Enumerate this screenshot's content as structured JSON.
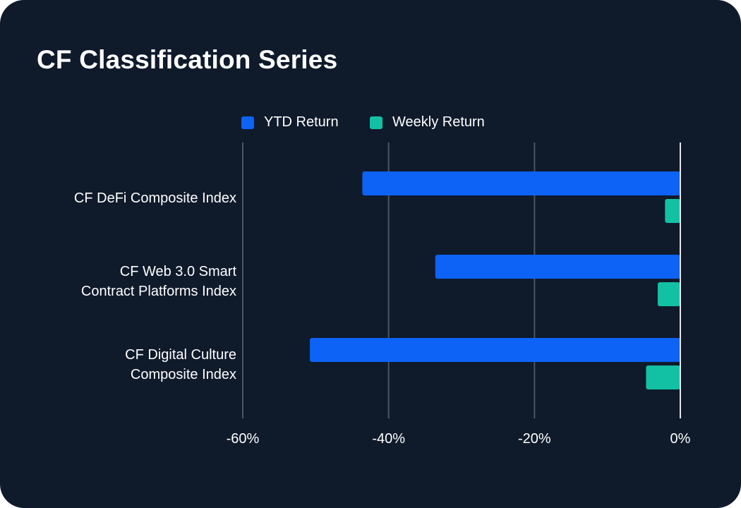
{
  "title": "CF Classification Series",
  "colors": {
    "background": "#0f1a2b",
    "ytd": "#0d63f5",
    "weekly": "#12c1a4",
    "grid": "#4b5563",
    "zero_line": "#e5e7eb"
  },
  "chart_data": {
    "type": "bar",
    "orientation": "horizontal",
    "title": "CF Classification Series",
    "categories": [
      [
        "CF DeFi Composite Index"
      ],
      [
        "CF Web 3.0 Smart",
        "Contract Platforms Index"
      ],
      [
        "CF Digital Culture",
        "Composite Index"
      ]
    ],
    "series": [
      {
        "name": "YTD Return",
        "values": [
          -43.6,
          -33.6,
          -50.8
        ]
      },
      {
        "name": "Weekly Return",
        "values": [
          -2.1,
          -3.1,
          -4.7
        ]
      }
    ],
    "xlim": [
      -60,
      0
    ],
    "xticks": [
      -60,
      -40,
      -20,
      0
    ],
    "xtick_labels": [
      "-60%",
      "-40%",
      "-20%",
      "0%"
    ],
    "xlabel": "",
    "ylabel": "",
    "grid": true,
    "legend_position": "top-center"
  }
}
